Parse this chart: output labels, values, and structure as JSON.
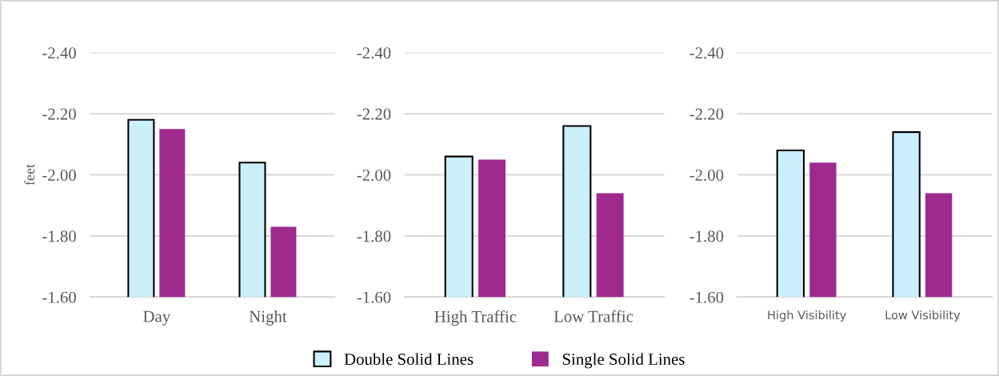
{
  "chart_data": [
    {
      "type": "bar",
      "ylabel": "feet",
      "categories": [
        "Day",
        "Night"
      ],
      "series": [
        {
          "name": "Double Solid Lines",
          "color": "#cdeefb",
          "values": [
            -2.18,
            -2.04
          ]
        },
        {
          "name": "Single Solid Lines",
          "color": "#9e2a8e",
          "values": [
            -2.15,
            -1.83
          ]
        }
      ],
      "ylim": [
        -1.6,
        -2.4
      ],
      "yticks": [
        {
          "value": -1.6,
          "label": "-1.60"
        },
        {
          "value": -1.8,
          "label": "-1.80"
        },
        {
          "value": -2.0,
          "label": "-2.00"
        },
        {
          "value": -2.2,
          "label": "-2.20"
        },
        {
          "value": -2.4,
          "label": "-2.40"
        }
      ],
      "grid": "y",
      "legend": "bottom"
    },
    {
      "type": "bar",
      "categories": [
        "High Traffic",
        "Low Traffic"
      ],
      "series": [
        {
          "color": "#cdeefb",
          "values": [
            -2.06,
            -2.16
          ]
        },
        {
          "color": "#9e2a8e",
          "values": [
            -2.05,
            -1.94
          ]
        }
      ],
      "ylim": [
        -1.6,
        -2.4
      ],
      "yticks": [
        {
          "value": -1.6,
          "label": "-1.60"
        },
        {
          "value": -1.8,
          "label": "-1.80"
        },
        {
          "value": -2.0,
          "label": "-2.00"
        },
        {
          "value": -2.2,
          "label": "-2.20"
        },
        {
          "value": -2.4,
          "label": "-2.40"
        }
      ],
      "grid": "y"
    },
    {
      "type": "bar",
      "categories": [
        "High Visibility",
        "Low Visibility"
      ],
      "series": [
        {
          "color": "#cdeefb",
          "values": [
            -2.08,
            -2.14
          ]
        },
        {
          "color": "#9e2a8e",
          "values": [
            -2.04,
            -1.94
          ]
        }
      ],
      "ylim": [
        -1.6,
        -2.4
      ],
      "yticks": [
        {
          "value": -1.6,
          "label": "-1.60"
        },
        {
          "value": -1.8,
          "label": "-1.80"
        },
        {
          "value": -2.0,
          "label": "-2.00"
        },
        {
          "value": -2.2,
          "label": "-2.20"
        },
        {
          "value": -2.4,
          "label": "-2.40"
        }
      ],
      "grid": "y"
    }
  ]
}
